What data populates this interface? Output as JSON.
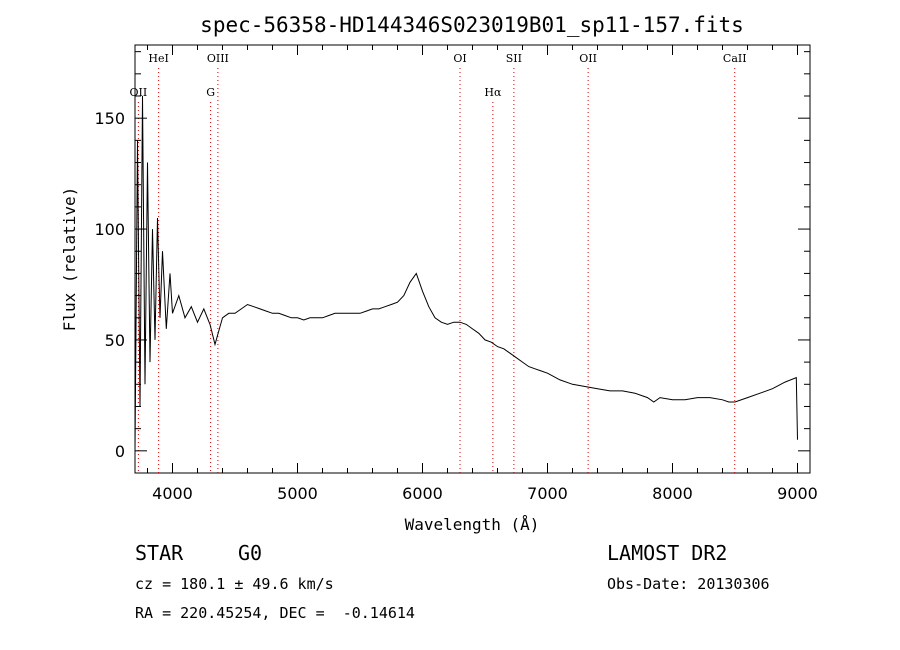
{
  "chart_data": {
    "type": "line",
    "title": "spec-56358-HD144346S023019B01_sp11-157.fits",
    "xlabel": "Wavelength (Å)",
    "ylabel": "Flux (relative)",
    "xlim": [
      3700,
      9100
    ],
    "ylim": [
      -10,
      183
    ],
    "x_ticks": [
      4000,
      5000,
      6000,
      7000,
      8000,
      9000
    ],
    "y_ticks": [
      0,
      50,
      100,
      150
    ],
    "grid": false,
    "series": [
      {
        "x": [
          3700,
          3720,
          3740,
          3760,
          3780,
          3800,
          3820,
          3840,
          3860,
          3880,
          3900,
          3920,
          3950,
          3980,
          4000,
          4050,
          4100,
          4150,
          4200,
          4250,
          4300,
          4340,
          4400,
          4450,
          4500,
          4550,
          4600,
          4650,
          4700,
          4750,
          4800,
          4850,
          4900,
          4950,
          5000,
          5050,
          5100,
          5150,
          5200,
          5250,
          5300,
          5350,
          5400,
          5450,
          5500,
          5550,
          5600,
          5650,
          5700,
          5750,
          5800,
          5850,
          5900,
          5950,
          6000,
          6050,
          6100,
          6150,
          6200,
          6250,
          6300,
          6350,
          6400,
          6450,
          6500,
          6550,
          6600,
          6650,
          6700,
          6750,
          6800,
          6850,
          6900,
          6950,
          7000,
          7100,
          7200,
          7300,
          7400,
          7500,
          7600,
          7700,
          7800,
          7850,
          7900,
          8000,
          8100,
          8200,
          8300,
          8400,
          8450,
          8500,
          8600,
          8700,
          8800,
          8900,
          8990,
          9000
        ],
        "y": [
          0,
          140,
          20,
          160,
          30,
          130,
          40,
          100,
          50,
          105,
          60,
          90,
          55,
          80,
          62,
          70,
          60,
          65,
          58,
          64,
          57,
          48,
          60,
          62,
          62,
          64,
          66,
          65,
          64,
          63,
          62,
          62,
          61,
          60,
          60,
          59,
          60,
          60,
          60,
          61,
          62,
          62,
          62,
          62,
          62,
          63,
          64,
          64,
          65,
          66,
          67,
          70,
          76,
          80,
          72,
          65,
          60,
          58,
          57,
          58,
          58,
          57,
          55,
          53,
          50,
          49,
          47,
          46,
          44,
          42,
          40,
          38,
          37,
          36,
          35,
          32,
          30,
          29,
          28,
          27,
          27,
          26,
          24,
          22,
          24,
          23,
          23,
          24,
          24,
          23,
          22,
          22,
          24,
          26,
          28,
          31,
          33,
          5
        ]
      }
    ],
    "line_markers": [
      {
        "label": "OII",
        "x": 3727,
        "row": 2
      },
      {
        "label": "HeI",
        "x": 3889,
        "row": 1
      },
      {
        "label": "OIII",
        "x": 4363,
        "row": 1
      },
      {
        "label": "G",
        "x": 4305,
        "row": 2
      },
      {
        "label": "OI",
        "x": 6300,
        "row": 1
      },
      {
        "label": "Hα",
        "x": 6563,
        "row": 2
      },
      {
        "label": "OII",
        "x": 7325,
        "row": 1
      },
      {
        "label": "SII",
        "x": 6731,
        "row": 1
      },
      {
        "label": "CaII",
        "x": 8498,
        "row": 1
      }
    ],
    "marker_color": "#cc0000",
    "line_color": "#000000"
  },
  "info": {
    "object_class": "STAR",
    "subclass": "G0",
    "survey": "LAMOST DR2",
    "redshift": "cz = 180.1 ± 49.6 km/s",
    "obs_date": "Obs-Date: 20130306",
    "coords": "RA = 220.45254, DEC =  -0.14614"
  }
}
